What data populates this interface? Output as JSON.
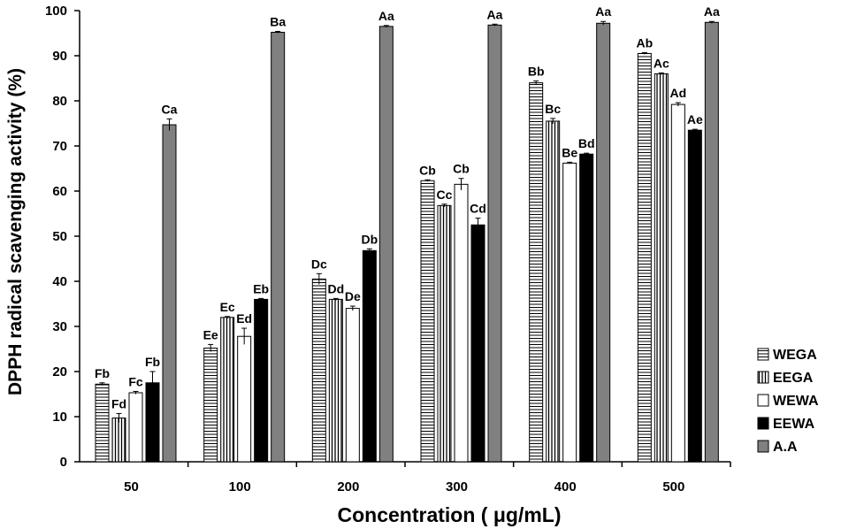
{
  "chart_data": {
    "type": "bar",
    "xlabel": "Concentration ( μg/mL)",
    "ylabel": "DPPH radical scavenging activity (%)",
    "ylim": [
      0,
      100
    ],
    "yticks": [
      0,
      10,
      20,
      30,
      40,
      50,
      60,
      70,
      80,
      90,
      100
    ],
    "categories": [
      "50",
      "100",
      "200",
      "300",
      "400",
      "500"
    ],
    "legend_position": "bottom-right",
    "series": [
      {
        "name": "WEGA",
        "pattern": "horizontal",
        "values": [
          17.2,
          25.2,
          40.5,
          62.3,
          84.0,
          90.5
        ],
        "errors": [
          0.3,
          0.8,
          1.2,
          0.2,
          0.4,
          0.2
        ],
        "labels": [
          "Fb",
          "Ee",
          "Dc",
          "Cb",
          "Bb",
          "Ab"
        ]
      },
      {
        "name": "EEGA",
        "pattern": "vertical",
        "values": [
          9.7,
          32.0,
          36.0,
          56.8,
          75.5,
          86.0
        ],
        "errors": [
          1.0,
          0.2,
          0.2,
          0.3,
          0.6,
          0.2
        ],
        "labels": [
          "Fd",
          "Ec",
          "Dd",
          "Cc",
          "Bc",
          "Ac"
        ]
      },
      {
        "name": "WEWA",
        "pattern": "white",
        "values": [
          15.3,
          27.8,
          34.0,
          61.5,
          66.2,
          79.2
        ],
        "errors": [
          0.3,
          1.8,
          0.5,
          1.3,
          0.2,
          0.4
        ],
        "labels": [
          "Fc",
          "Ed",
          "De",
          "Cb",
          "Be",
          "Ad"
        ]
      },
      {
        "name": "EEWA",
        "pattern": "black",
        "values": [
          17.5,
          36.0,
          46.8,
          52.5,
          68.2,
          73.5
        ],
        "errors": [
          2.5,
          0.2,
          0.4,
          1.5,
          0.2,
          0.2
        ],
        "labels": [
          "Fb",
          "Eb",
          "Db",
          "Cd",
          "Bd",
          "Ae"
        ]
      },
      {
        "name": "A.A",
        "pattern": "gray",
        "values": [
          74.7,
          95.2,
          96.5,
          96.8,
          97.2,
          97.4
        ],
        "errors": [
          1.3,
          0.2,
          0.2,
          0.2,
          0.4,
          0.2
        ],
        "labels": [
          "Ca",
          "Ba",
          "Aa",
          "Aa",
          "Aa",
          "Aa"
        ]
      }
    ]
  },
  "colors": {
    "gray_bar": "#808080",
    "black_bar": "#000000",
    "white_bar": "#ffffff",
    "stroke": "#000000"
  }
}
